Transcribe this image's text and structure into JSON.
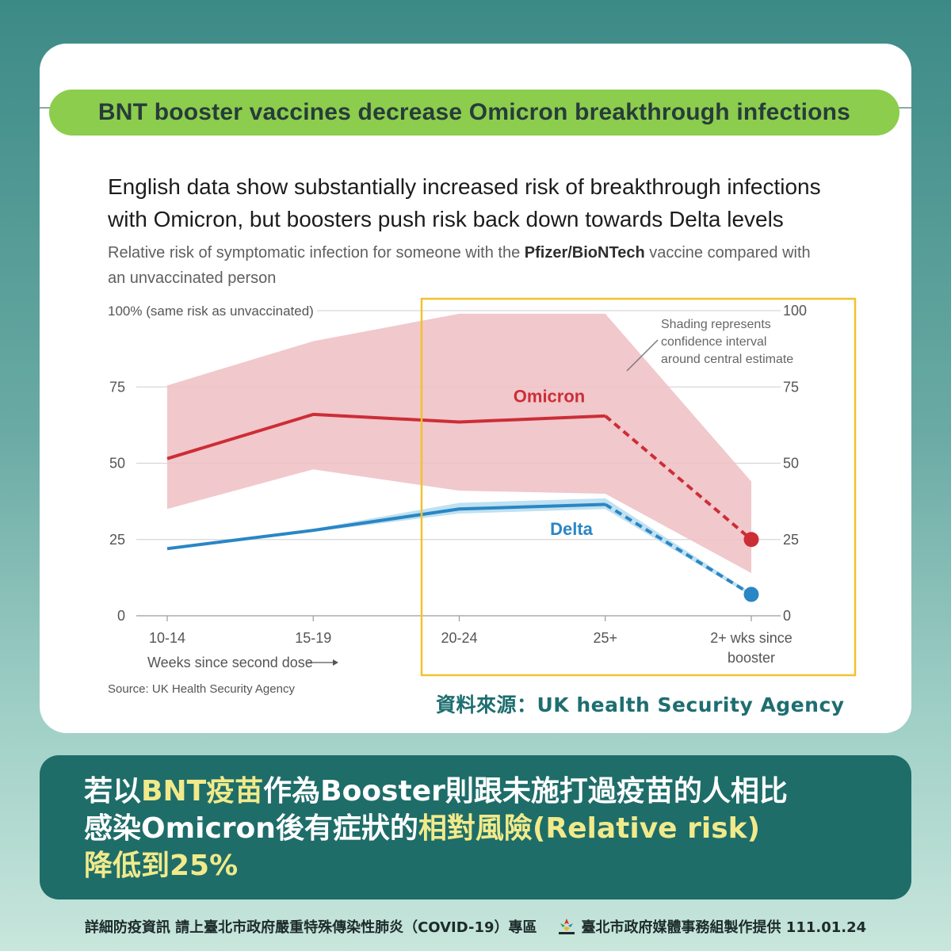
{
  "banner_title": "BNT booster vaccines decrease Omicron breakthrough infections",
  "chart_heading_line1": "English data show substantially increased risk of breakthrough infections",
  "chart_heading_line2": "with Omicron, but boosters push risk back down towards Delta levels",
  "chart_sub_prefix": "Relative risk of symptomatic infection for someone with the ",
  "chart_sub_bold": "Pfizer/BioNTech",
  "chart_sub_suffix": " vaccine compared with",
  "chart_sub_line2": "an unvaccinated person",
  "source_note": "Source: UK Health Security Agency",
  "source_zh": "資料來源：UK health Security Agency",
  "summary": {
    "l1_a": "若以",
    "l1_hl": "BNT疫苗",
    "l1_b": "作為Booster則跟未施打過疫苗的人相比",
    "l2_a": "感染Omicron後有症狀的",
    "l2_hl": "相對風險(Relative risk)",
    "l3": "降低到25%"
  },
  "footer_left": "詳細防疫資訊 請上臺北市政府嚴重特殊傳染性肺炎（COVID-19）專區",
  "footer_right": "臺北市政府媒體事務組製作提供 111.01.24",
  "colors": {
    "omicron": "#cc2e36",
    "omicron_band": "#f0c2c6",
    "delta": "#2a86c4",
    "delta_band": "#bcdff0",
    "highlight_box": "#f2c12e",
    "banner": "#8ccd4d"
  },
  "chart_data": {
    "type": "line",
    "title": "English data show substantially increased risk of breakthrough infections with Omicron, but boosters push risk back down towards Delta levels",
    "subtitle": "Relative risk of symptomatic infection for someone with the Pfizer/BioNTech vaccine compared with an unvaccinated person",
    "categories": [
      "10-14",
      "15-19",
      "20-24",
      "25+",
      "2+ wks since booster"
    ],
    "xlabel": "Weeks since second dose",
    "ylim": [
      0,
      100
    ],
    "yticks": [
      0,
      25,
      50,
      75,
      100
    ],
    "ytick_labels": [
      "0",
      "25",
      "50",
      "75",
      "100"
    ],
    "ytick_top_left_label": "100% (same risk as unvaccinated)",
    "series": [
      {
        "name": "Omicron",
        "values": [
          51.5,
          66,
          63.5,
          65.5,
          25
        ],
        "ci_low": [
          35,
          48,
          41,
          40,
          14
        ],
        "ci_high": [
          75.5,
          90,
          99,
          99,
          44
        ],
        "dashed_from_index": 3,
        "end_marker": true
      },
      {
        "name": "Delta",
        "values": [
          22,
          28,
          35,
          36.5,
          7
        ],
        "ci_low": [
          21.5,
          27.5,
          33.5,
          35,
          6.5
        ],
        "ci_high": [
          22.5,
          28.5,
          37,
          38.5,
          7.5
        ],
        "dashed_from_index": 3,
        "end_marker": true
      }
    ],
    "annotation": "Shading represents confidence interval around central estimate",
    "grid": true
  }
}
